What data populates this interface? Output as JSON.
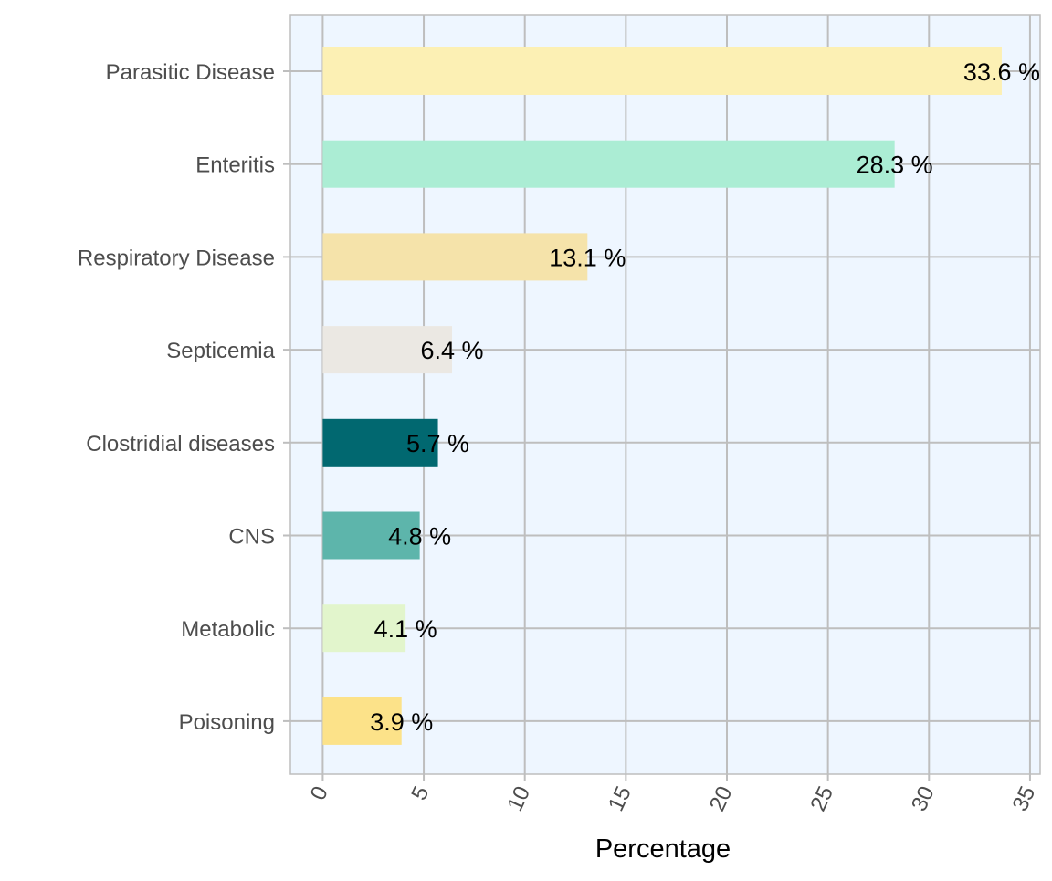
{
  "chart_data": {
    "type": "bar",
    "orientation": "horizontal",
    "categories": [
      "Parasitic Disease",
      "Enteritis",
      "Respiratory Disease",
      "Septicemia",
      "Clostridial diseases",
      "CNS",
      "Metabolic",
      "Poisoning"
    ],
    "values": [
      33.6,
      28.3,
      13.1,
      6.4,
      5.7,
      4.8,
      4.1,
      3.9
    ],
    "value_labels": [
      "33.6 %",
      "28.3 %",
      "13.1 %",
      "6.4 %",
      "5.7 %",
      "4.8 %",
      "4.1 %",
      "3.9 %"
    ],
    "bar_colors": [
      "#FCF0B4",
      "#ABEDD4",
      "#F5E3AA",
      "#EBE8E3",
      "#016870",
      "#5DB5AB",
      "#E2F5CC",
      "#FCE289"
    ],
    "xlabel": "Percentage",
    "ylabel": "",
    "xlim": [
      -1.6,
      35.5
    ],
    "xticks": [
      "0",
      "5",
      "10",
      "15",
      "20",
      "25",
      "30",
      "35"
    ],
    "grid": true,
    "panel_background": "#EEF6FF",
    "grid_color": "#BEBEBE"
  }
}
